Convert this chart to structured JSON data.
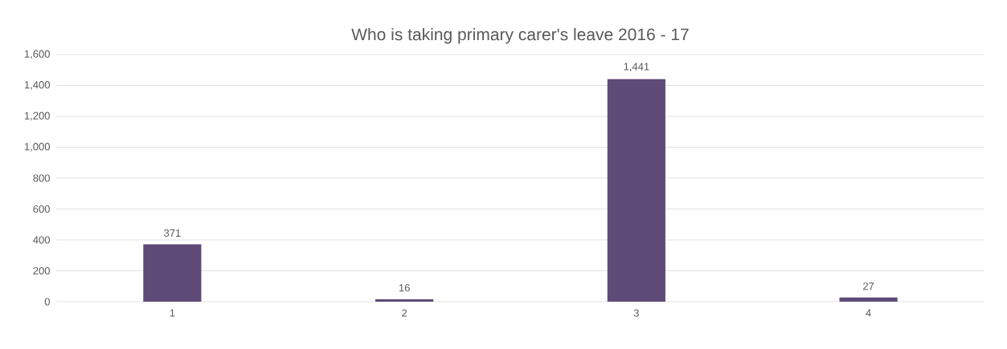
{
  "chart_data": {
    "type": "bar",
    "title": "Who is taking primary carer's leave 2016 - 17",
    "categories": [
      "1",
      "2",
      "3",
      "4"
    ],
    "values": [
      371,
      16,
      1441,
      27
    ],
    "value_labels": [
      "371",
      "16",
      "1,441",
      "27"
    ],
    "color": "#5f4b78",
    "ylim": [
      0,
      1600
    ],
    "yticks": [
      0,
      200,
      400,
      600,
      800,
      {
        "value": 1000,
        "label": "1,000"
      },
      {
        "value": 1200,
        "label": "1,200"
      },
      {
        "value": 1400,
        "label": "1,400"
      },
      {
        "value": 1600,
        "label": "1,600"
      }
    ],
    "grid": "y"
  }
}
